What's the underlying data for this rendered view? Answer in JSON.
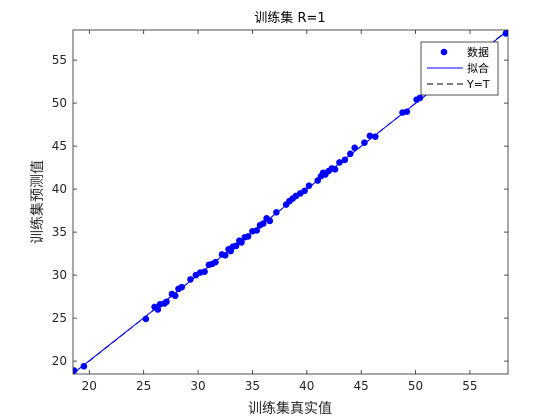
{
  "chart_data": {
    "type": "scatter",
    "title": "训练集 R=1",
    "xlabel": "训练集真实值",
    "ylabel": "训练集预测值",
    "xlim": [
      18.5,
      58.5
    ],
    "ylim": [
      18.5,
      58.5
    ],
    "x_ticks": [
      20,
      25,
      30,
      35,
      40,
      45,
      50,
      55
    ],
    "y_ticks": [
      20,
      25,
      30,
      35,
      40,
      45,
      50,
      55
    ],
    "grid": false,
    "legend_position": "top-right",
    "legend": [
      "数据",
      "拟合",
      "Y=T"
    ],
    "series": [
      {
        "name": "数据",
        "kind": "points",
        "color": "#0000ff",
        "points": [
          [
            18.6,
            18.9
          ],
          [
            19.5,
            19.4
          ],
          [
            25.2,
            24.9
          ],
          [
            26.0,
            26.3
          ],
          [
            26.3,
            26.0
          ],
          [
            26.5,
            26.6
          ],
          [
            26.9,
            26.7
          ],
          [
            27.1,
            26.9
          ],
          [
            27.6,
            27.8
          ],
          [
            27.9,
            27.6
          ],
          [
            28.2,
            28.4
          ],
          [
            28.5,
            28.6
          ],
          [
            29.3,
            29.5
          ],
          [
            29.8,
            30.0
          ],
          [
            30.2,
            30.3
          ],
          [
            30.6,
            30.4
          ],
          [
            31.0,
            31.2
          ],
          [
            31.3,
            31.3
          ],
          [
            31.6,
            31.5
          ],
          [
            32.2,
            32.4
          ],
          [
            32.5,
            32.3
          ],
          [
            32.8,
            33.0
          ],
          [
            33.0,
            32.8
          ],
          [
            33.2,
            33.3
          ],
          [
            33.5,
            33.4
          ],
          [
            33.8,
            34.0
          ],
          [
            34.0,
            33.8
          ],
          [
            34.3,
            34.4
          ],
          [
            34.6,
            34.5
          ],
          [
            35.0,
            35.1
          ],
          [
            35.4,
            35.2
          ],
          [
            35.7,
            35.8
          ],
          [
            36.0,
            36.0
          ],
          [
            36.3,
            36.6
          ],
          [
            36.6,
            36.3
          ],
          [
            37.2,
            37.3
          ],
          [
            38.1,
            38.2
          ],
          [
            38.4,
            38.6
          ],
          [
            38.7,
            38.9
          ],
          [
            39.0,
            39.2
          ],
          [
            39.4,
            39.5
          ],
          [
            39.8,
            39.8
          ],
          [
            40.2,
            40.4
          ],
          [
            41.0,
            41.0
          ],
          [
            41.3,
            41.5
          ],
          [
            41.5,
            41.9
          ],
          [
            41.7,
            41.7
          ],
          [
            42.0,
            42.1
          ],
          [
            42.3,
            42.4
          ],
          [
            42.6,
            42.3
          ],
          [
            43.0,
            43.1
          ],
          [
            43.5,
            43.4
          ],
          [
            44.0,
            44.1
          ],
          [
            44.4,
            44.8
          ],
          [
            45.3,
            45.4
          ],
          [
            45.8,
            46.2
          ],
          [
            46.3,
            46.1
          ],
          [
            48.8,
            48.9
          ],
          [
            49.2,
            49.0
          ],
          [
            50.1,
            50.4
          ],
          [
            50.4,
            50.6
          ],
          [
            58.3,
            58.1
          ]
        ]
      },
      {
        "name": "拟合",
        "kind": "line",
        "color": "#0000ff",
        "x": [
          18.5,
          58.5
        ],
        "y": [
          18.55,
          58.45
        ]
      },
      {
        "name": "Y=T",
        "kind": "dashed",
        "color": "#000000",
        "x": [
          18.5,
          58.5
        ],
        "y": [
          18.5,
          58.5
        ]
      }
    ]
  }
}
